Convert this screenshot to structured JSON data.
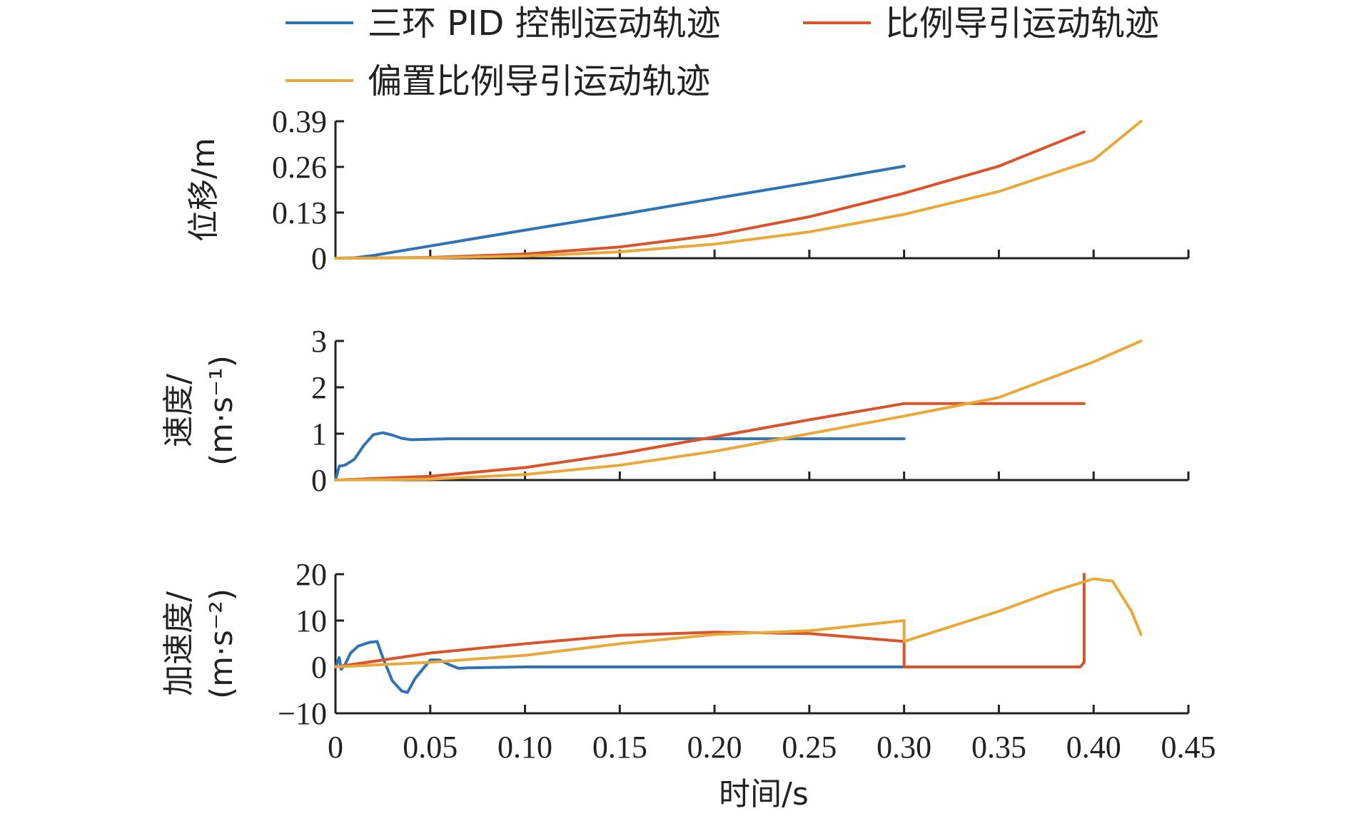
{
  "chart_data": {
    "type": "line",
    "legend": {
      "placement": "top",
      "entries": [
        {
          "name": "三环 PID 控制运动轨迹",
          "color": "#2E74B5"
        },
        {
          "name": "比例导引运动轨迹",
          "color": "#D9542B"
        },
        {
          "name": "偏置比例导引运动轨迹",
          "color": "#E8A93A"
        }
      ]
    },
    "xlabel": "时间/s",
    "x_ticks": [
      "0",
      "0.05",
      "0.10",
      "0.15",
      "0.20",
      "0.25",
      "0.30",
      "0.35",
      "0.40",
      "0.45"
    ],
    "xlim": [
      0,
      0.45
    ],
    "panels": [
      {
        "ylabel_lines": [
          "位移/m"
        ],
        "ylim": [
          0,
          0.39
        ],
        "y_ticks": [
          "0",
          "0.13",
          "0.26",
          "0.39"
        ],
        "series": [
          {
            "name": "三环 PID 控制运动轨迹",
            "x": [
              0,
              0.01,
              0.02,
              0.05,
              0.1,
              0.15,
              0.2,
              0.25,
              0.3
            ],
            "y": [
              0,
              0.001,
              0.008,
              0.035,
              0.08,
              0.124,
              0.17,
              0.215,
              0.262
            ]
          },
          {
            "name": "比例导引运动轨迹",
            "x": [
              0,
              0.05,
              0.1,
              0.15,
              0.2,
              0.25,
              0.3,
              0.35,
              0.395
            ],
            "y": [
              0,
              0.002,
              0.012,
              0.032,
              0.066,
              0.118,
              0.185,
              0.262,
              0.36
            ]
          },
          {
            "name": "偏置比例导引运动轨迹",
            "x": [
              0,
              0.05,
              0.1,
              0.15,
              0.2,
              0.25,
              0.3,
              0.35,
              0.4,
              0.425
            ],
            "y": [
              0,
              0.001,
              0.006,
              0.018,
              0.04,
              0.075,
              0.125,
              0.19,
              0.28,
              0.39
            ]
          }
        ]
      },
      {
        "ylabel_lines": [
          "速度/",
          "(m·s⁻¹)"
        ],
        "ylim": [
          0,
          3
        ],
        "y_ticks": [
          "0",
          "1",
          "2",
          "3"
        ],
        "series": [
          {
            "name": "三环 PID 控制运动轨迹",
            "x": [
              0,
              0.002,
              0.005,
              0.01,
              0.015,
              0.02,
              0.025,
              0.03,
              0.035,
              0.04,
              0.05,
              0.06,
              0.1,
              0.2,
              0.3
            ],
            "y": [
              0,
              0.3,
              0.32,
              0.45,
              0.75,
              0.98,
              1.02,
              0.97,
              0.9,
              0.87,
              0.88,
              0.89,
              0.89,
              0.89,
              0.89
            ]
          },
          {
            "name": "比例导引运动轨迹",
            "x": [
              0,
              0.05,
              0.1,
              0.15,
              0.2,
              0.25,
              0.3,
              0.35,
              0.395
            ],
            "y": [
              0,
              0.08,
              0.27,
              0.57,
              0.93,
              1.3,
              1.65,
              1.65,
              1.65
            ]
          },
          {
            "name": "偏置比例导引运动轨迹",
            "x": [
              0,
              0.05,
              0.1,
              0.15,
              0.2,
              0.25,
              0.3,
              0.35,
              0.4,
              0.425
            ],
            "y": [
              0,
              0.02,
              0.12,
              0.32,
              0.62,
              1.0,
              1.38,
              1.78,
              2.55,
              3.0
            ]
          }
        ]
      },
      {
        "ylabel_lines": [
          "加速度/",
          "(m·s⁻²)"
        ],
        "ylim": [
          -10,
          20
        ],
        "y_ticks": [
          "-10",
          "0",
          "10",
          "20"
        ],
        "series": [
          {
            "name": "三环 PID 控制运动轨迹",
            "x": [
              0,
              0.002,
              0.003,
              0.005,
              0.008,
              0.012,
              0.018,
              0.022,
              0.025,
              0.03,
              0.035,
              0.038,
              0.042,
              0.05,
              0.055,
              0.06,
              0.065,
              0.07,
              0.1,
              0.2,
              0.3
            ],
            "y": [
              0,
              2,
              -0.5,
              0.5,
              3,
              4.5,
              5.3,
              5.5,
              2,
              -3,
              -5.2,
              -5.5,
              -2.5,
              1.5,
              1.5,
              0.5,
              -0.3,
              -0.2,
              0,
              0,
              0
            ]
          },
          {
            "name": "比例导引运动轨迹",
            "x": [
              0,
              0.05,
              0.1,
              0.15,
              0.2,
              0.25,
              0.3,
              0.3,
              0.35,
              0.393,
              0.395,
              0.395
            ],
            "y": [
              0,
              3,
              5,
              6.8,
              7.5,
              7.2,
              5.5,
              0,
              0,
              0,
              1,
              20
            ]
          },
          {
            "name": "偏置比例导引运动轨迹",
            "x": [
              0,
              0.05,
              0.1,
              0.15,
              0.2,
              0.25,
              0.3,
              0.3,
              0.35,
              0.38,
              0.4,
              0.41,
              0.42,
              0.425
            ],
            "y": [
              0,
              1,
              2.5,
              5,
              7,
              7.8,
              10,
              5.5,
              12,
              16.5,
              19,
              18.5,
              12,
              7
            ]
          }
        ]
      }
    ]
  }
}
